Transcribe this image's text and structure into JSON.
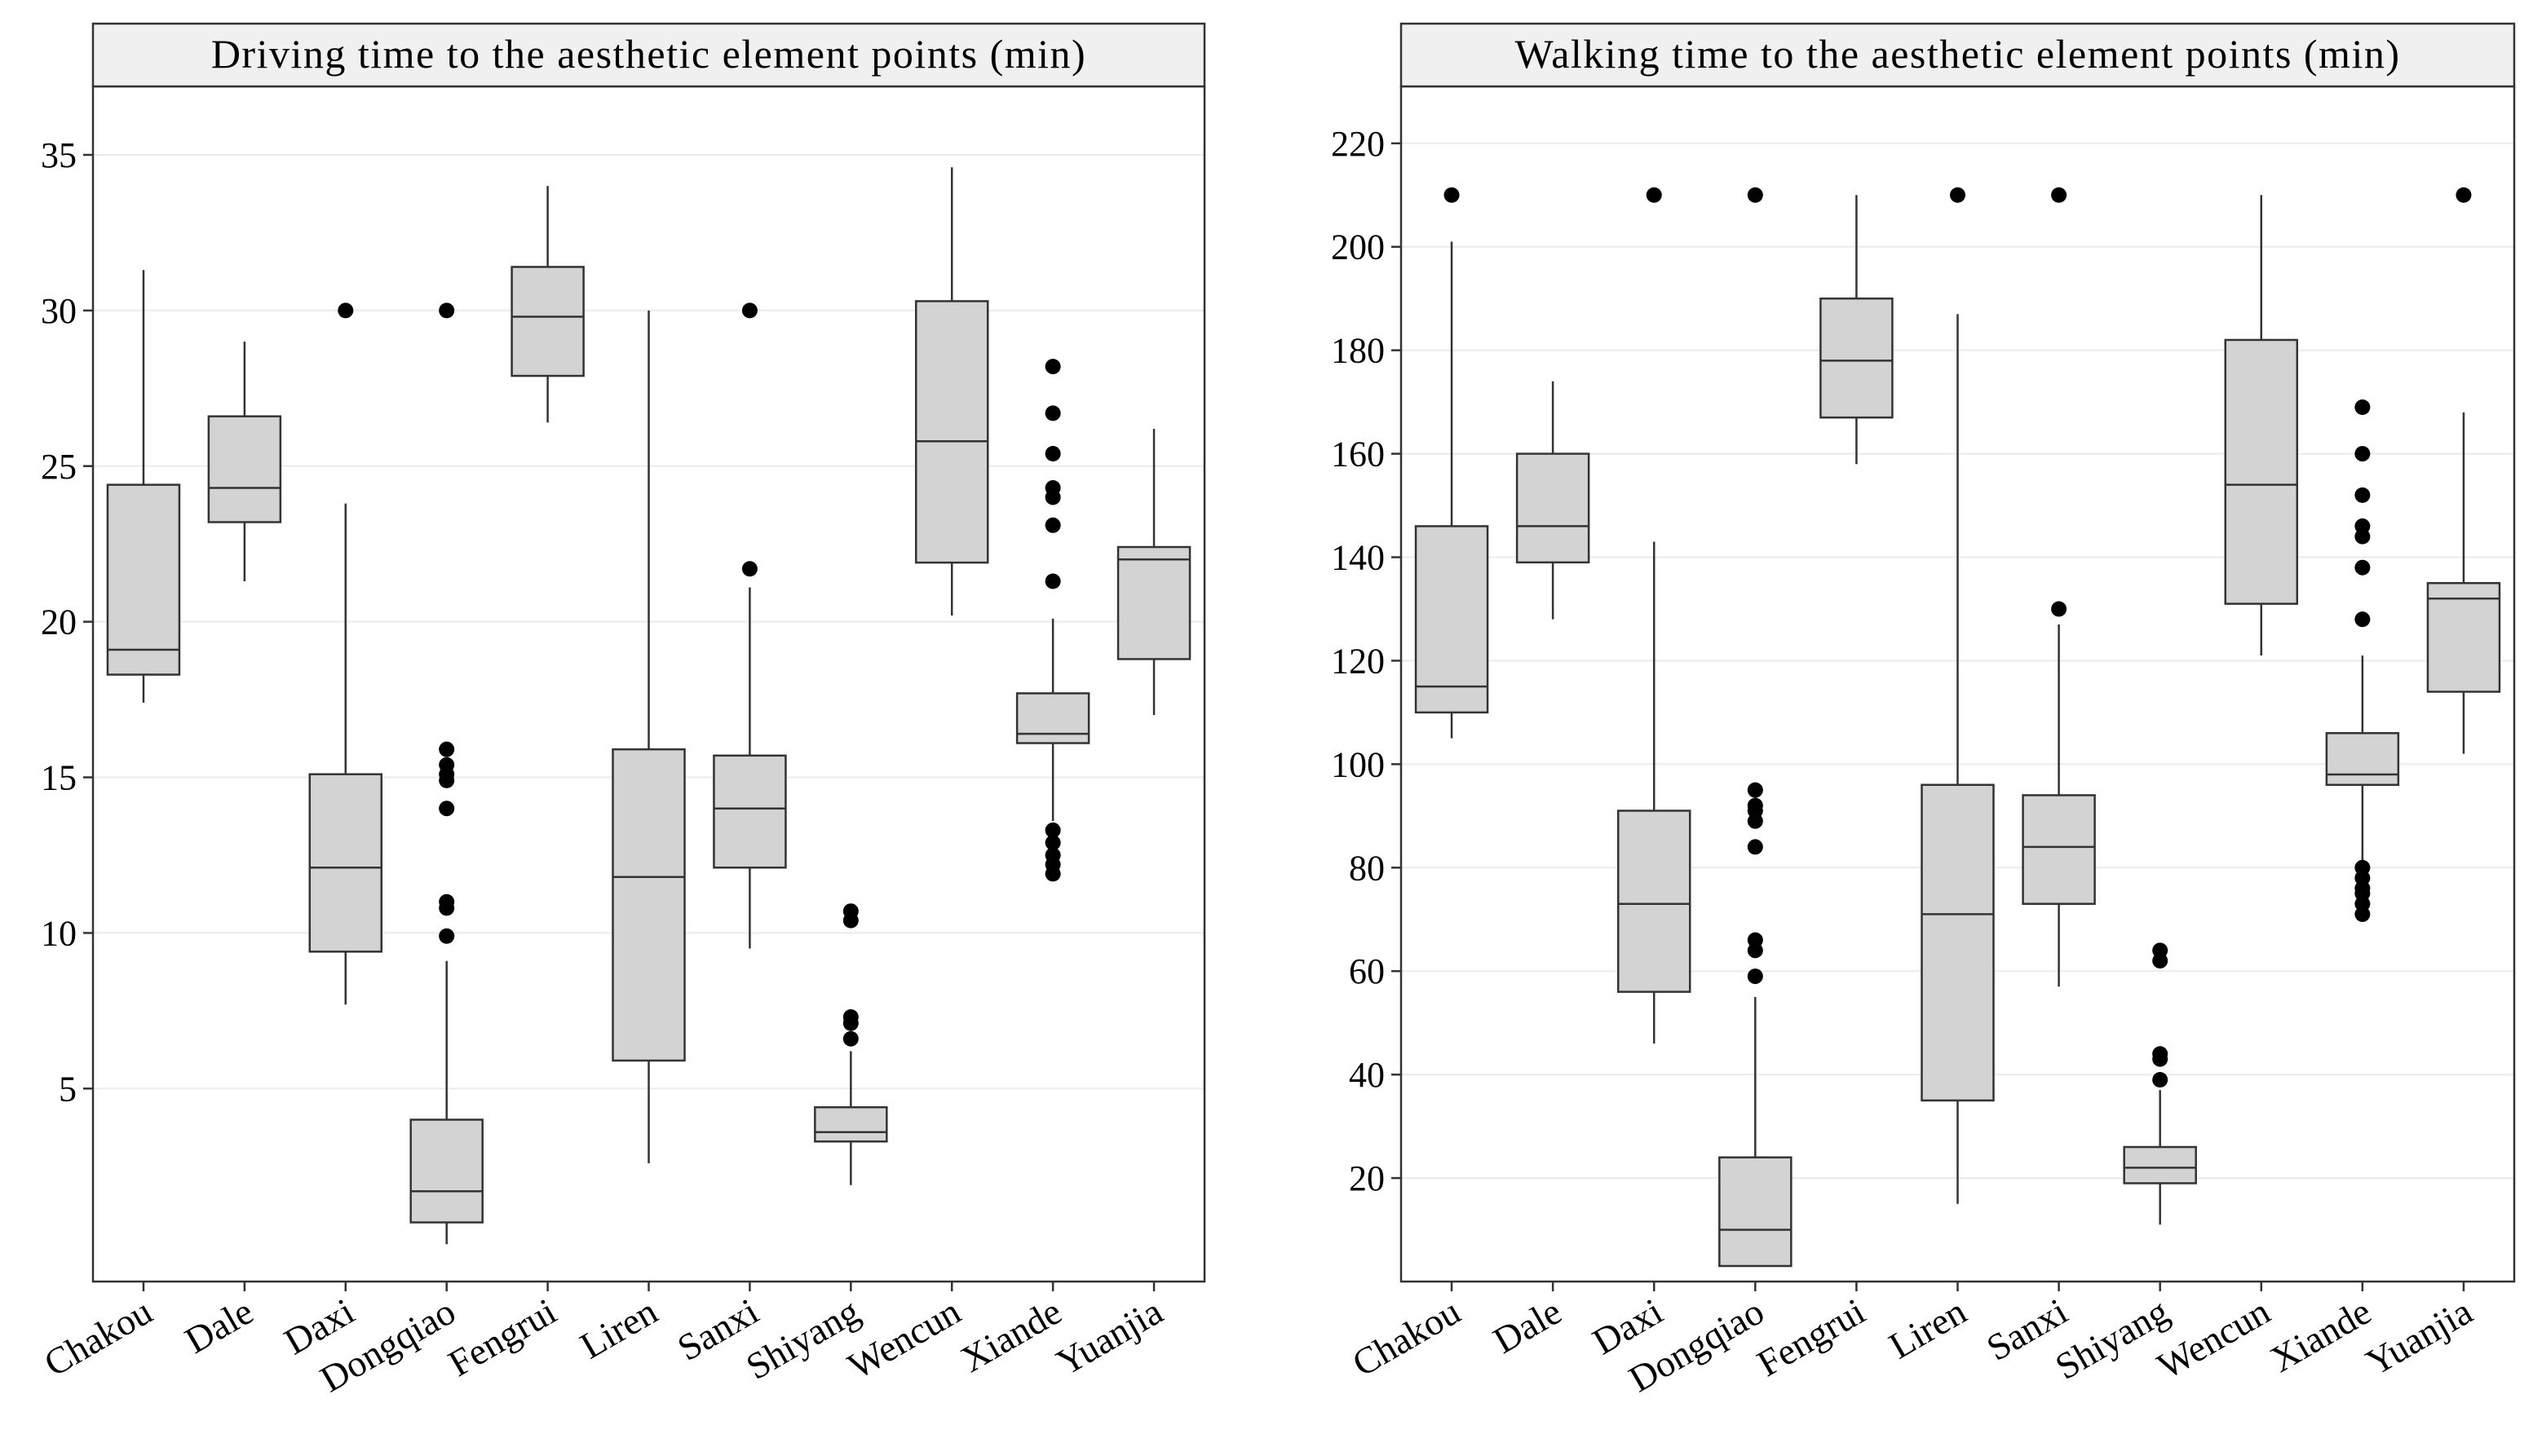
{
  "colors": {
    "box_fill": "#d3d3d3",
    "strip_fill": "#f0f0f0",
    "grid": "#ebebeb",
    "line": "#333333",
    "outlier": "#000000",
    "background": "#ffffff"
  },
  "chart_data": [
    {
      "type": "box",
      "title": "Driving time to the aesthetic element points (min)",
      "xlabel": "",
      "ylabel": "",
      "ylim": [
        -1.2,
        37.2
      ],
      "yticks": [
        5,
        10,
        15,
        20,
        25,
        30,
        35
      ],
      "grid": "horizontal",
      "categories": [
        "Chakou",
        "Dale",
        "Daxi",
        "Dongqiao",
        "Fengrui",
        "Liren",
        "Sanxi",
        "Shiyang",
        "Wencun",
        "Xiande",
        "Yuanjia"
      ],
      "boxes": [
        {
          "whisker_low": 17.4,
          "q1": 18.3,
          "median": 19.1,
          "q3": 24.4,
          "whisker_high": 31.3,
          "outliers": []
        },
        {
          "whisker_low": 21.3,
          "q1": 23.2,
          "median": 24.3,
          "q3": 26.6,
          "whisker_high": 29.0,
          "outliers": []
        },
        {
          "whisker_low": 7.7,
          "q1": 9.4,
          "median": 12.1,
          "q3": 15.1,
          "whisker_high": 23.8,
          "outliers": [
            30.0
          ]
        },
        {
          "whisker_low": 0.0,
          "q1": 0.7,
          "median": 1.7,
          "q3": 4.0,
          "whisker_high": 9.1,
          "outliers": [
            9.9,
            10.8,
            11.0,
            14.0,
            14.9,
            15.1,
            15.4,
            15.9,
            30.0
          ]
        },
        {
          "whisker_low": 26.4,
          "q1": 27.9,
          "median": 29.8,
          "q3": 31.4,
          "whisker_high": 34.0,
          "outliers": []
        },
        {
          "whisker_low": 2.6,
          "q1": 5.9,
          "median": 11.8,
          "q3": 15.9,
          "whisker_high": 30.0,
          "outliers": []
        },
        {
          "whisker_low": 9.5,
          "q1": 12.1,
          "median": 14.0,
          "q3": 15.7,
          "whisker_high": 21.1,
          "outliers": [
            21.7,
            30.0
          ]
        },
        {
          "whisker_low": 1.9,
          "q1": 3.3,
          "median": 3.6,
          "q3": 4.4,
          "whisker_high": 6.2,
          "outliers": [
            6.6,
            7.1,
            7.3,
            10.4,
            10.7
          ]
        },
        {
          "whisker_low": 20.2,
          "q1": 21.9,
          "median": 25.8,
          "q3": 30.3,
          "whisker_high": 34.6,
          "outliers": []
        },
        {
          "whisker_low": 13.6,
          "q1": 16.1,
          "median": 16.4,
          "q3": 17.7,
          "whisker_high": 20.1,
          "outliers": [
            11.9,
            12.2,
            12.5,
            12.9,
            13.3,
            21.3,
            23.1,
            24.0,
            24.3,
            25.4,
            26.7,
            28.2
          ]
        },
        {
          "whisker_low": 17.0,
          "q1": 18.8,
          "median": 22.0,
          "q3": 22.4,
          "whisker_high": 26.2,
          "outliers": []
        }
      ]
    },
    {
      "type": "box",
      "title": "Walking time to the aesthetic element points (min)",
      "xlabel": "",
      "ylabel": "",
      "ylim": [
        0,
        231
      ],
      "yticks": [
        20,
        40,
        60,
        80,
        100,
        120,
        140,
        160,
        180,
        200,
        220
      ],
      "grid": "horizontal",
      "categories": [
        "Chakou",
        "Dale",
        "Daxi",
        "Dongqiao",
        "Fengrui",
        "Liren",
        "Sanxi",
        "Shiyang",
        "Wencun",
        "Xiande",
        "Yuanjia"
      ],
      "boxes": [
        {
          "whisker_low": 105,
          "q1": 110,
          "median": 115,
          "q3": 146,
          "whisker_high": 201,
          "outliers": [
            210
          ]
        },
        {
          "whisker_low": 128,
          "q1": 139,
          "median": 146,
          "q3": 160,
          "whisker_high": 174,
          "outliers": []
        },
        {
          "whisker_low": 46,
          "q1": 56,
          "median": 73,
          "q3": 91,
          "whisker_high": 143,
          "outliers": [
            210
          ]
        },
        {
          "whisker_low": 3,
          "q1": 3,
          "median": 10,
          "q3": 24,
          "whisker_high": 55,
          "outliers": [
            59,
            64,
            66,
            84,
            89,
            91,
            92,
            95,
            210
          ]
        },
        {
          "whisker_low": 158,
          "q1": 167,
          "median": 178,
          "q3": 190,
          "whisker_high": 210,
          "outliers": []
        },
        {
          "whisker_low": 15,
          "q1": 35,
          "median": 71,
          "q3": 96,
          "whisker_high": 187,
          "outliers": [
            210
          ]
        },
        {
          "whisker_low": 57,
          "q1": 73,
          "median": 84,
          "q3": 94,
          "whisker_high": 127,
          "outliers": [
            130,
            210
          ]
        },
        {
          "whisker_low": 11,
          "q1": 19,
          "median": 22,
          "q3": 26,
          "whisker_high": 37,
          "outliers": [
            39,
            43,
            44,
            62,
            64
          ]
        },
        {
          "whisker_low": 121,
          "q1": 131,
          "median": 154,
          "q3": 182,
          "whisker_high": 210,
          "outliers": []
        },
        {
          "whisker_low": 81,
          "q1": 96,
          "median": 98,
          "q3": 106,
          "whisker_high": 121,
          "outliers": [
            71,
            73,
            75,
            76,
            78,
            80,
            128,
            138,
            144,
            146,
            152,
            160,
            169
          ]
        },
        {
          "whisker_low": 102,
          "q1": 114,
          "median": 132,
          "q3": 135,
          "whisker_high": 168,
          "outliers": [
            210
          ]
        }
      ]
    }
  ]
}
